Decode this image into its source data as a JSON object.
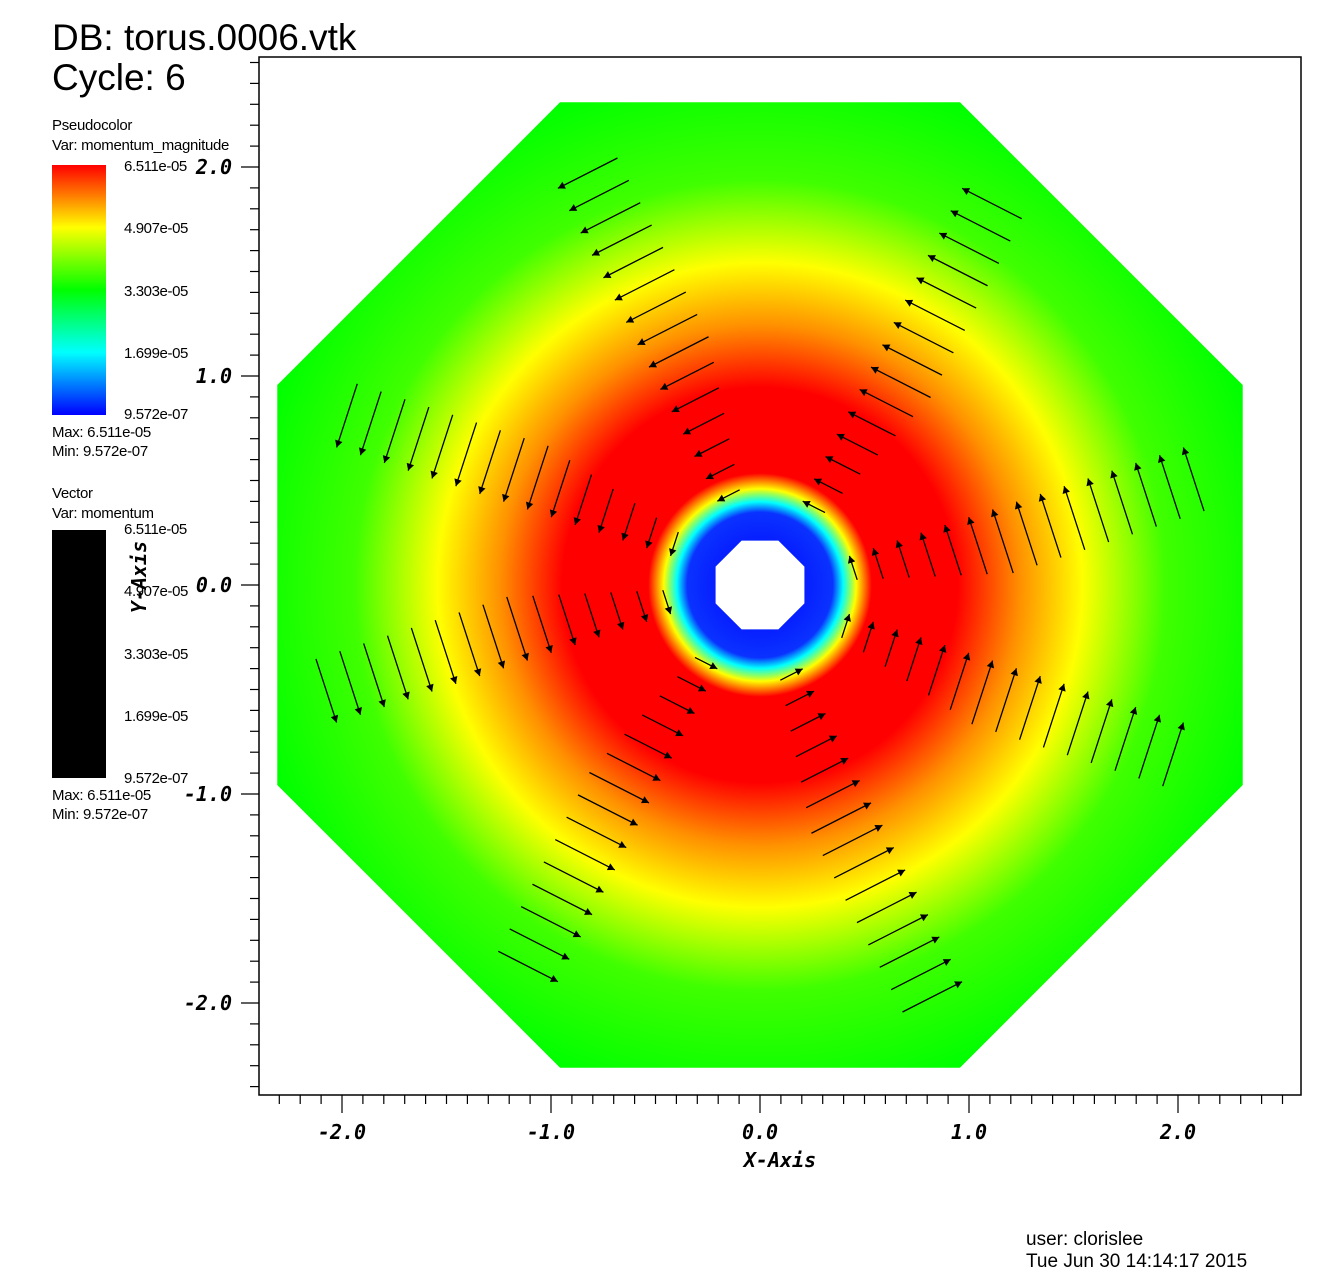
{
  "header": {
    "db": "DB: torus.0006.vtk",
    "cycle": "Cycle: 6"
  },
  "pseudocolor_legend": {
    "title": "Pseudocolor",
    "var": "Var: momentum_magnitude",
    "ticks": [
      "6.511e-05",
      "4.907e-05",
      "3.303e-05",
      "1.699e-05",
      "9.572e-07"
    ],
    "max": "Max:  6.511e-05",
    "min": "Min:  9.572e-07",
    "colors": [
      "#ff0000",
      "#ffff00",
      "#00ff00",
      "#00ffff",
      "#0000ff"
    ]
  },
  "vector_legend": {
    "title": "Vector",
    "var": "Var: momentum",
    "ticks": [
      "6.511e-05",
      "4.907e-05",
      "3.303e-05",
      "1.699e-05",
      "9.572e-07"
    ],
    "max": "Max:  6.511e-05",
    "min": "Min:  9.572e-07",
    "color": "#000000"
  },
  "axes": {
    "x_title": "X-Axis",
    "y_title": "Y-Axis",
    "x_ticks": [
      "-2.0",
      "-1.0",
      "0.0",
      "1.0",
      "2.0"
    ],
    "y_ticks": [
      "2.0",
      "1.0",
      "0.0",
      "-1.0",
      "-2.0"
    ],
    "x_range": [
      -2.4,
      2.6
    ],
    "y_range": [
      -2.4,
      2.6
    ]
  },
  "footer": {
    "user": "user: clorislee",
    "date": "Tue Jun 30 14:14:17 2015"
  }
}
